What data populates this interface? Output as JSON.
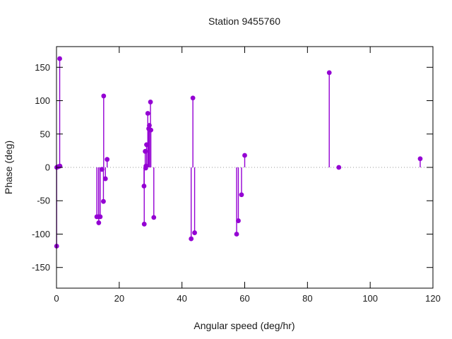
{
  "figure": {
    "background": "#ffffff",
    "border_color": "#000000",
    "text_color": "#1a1a1a",
    "zero_line_color": "#999999"
  },
  "chart_data": {
    "type": "scatter",
    "style": "impulses-with-points",
    "title": "Station 9455760",
    "xlabel": "Angular speed (deg/hr)",
    "ylabel": "Phase (deg)",
    "xlim": [
      0,
      120
    ],
    "ylim": [
      -181,
      181
    ],
    "x_ticks": [
      0,
      20,
      40,
      60,
      80,
      100,
      120
    ],
    "y_ticks": [
      -150,
      -100,
      -50,
      0,
      50,
      100,
      150
    ],
    "grid": false,
    "zero_line": true,
    "legend_position": "none",
    "series": [
      {
        "name": "phase",
        "color": "#9400d3",
        "marker": "filled-circle",
        "points": [
          [
            0.04,
            -118
          ],
          [
            0.08,
            0
          ],
          [
            0.54,
            1
          ],
          [
            1.02,
            163
          ],
          [
            1.1,
            2
          ],
          [
            12.85,
            -74
          ],
          [
            13.4,
            -74
          ],
          [
            13.47,
            -83
          ],
          [
            13.94,
            -74
          ],
          [
            14.5,
            -3
          ],
          [
            14.96,
            -51
          ],
          [
            15.04,
            107
          ],
          [
            15.59,
            -17
          ],
          [
            16.14,
            12
          ],
          [
            27.9,
            -28
          ],
          [
            27.97,
            -85
          ],
          [
            28.28,
            24
          ],
          [
            28.44,
            -1
          ],
          [
            28.51,
            2
          ],
          [
            28.7,
            34
          ],
          [
            29.1,
            81
          ],
          [
            29.4,
            58
          ],
          [
            29.6,
            63
          ],
          [
            29.96,
            98
          ],
          [
            30.08,
            56
          ],
          [
            31.02,
            -75
          ],
          [
            42.93,
            -107
          ],
          [
            43.48,
            104
          ],
          [
            44.03,
            -98
          ],
          [
            57.42,
            -100
          ],
          [
            57.97,
            -80
          ],
          [
            58.98,
            -41
          ],
          [
            60.0,
            18
          ],
          [
            86.95,
            142
          ],
          [
            90.0,
            0
          ],
          [
            115.94,
            13
          ]
        ]
      }
    ]
  }
}
